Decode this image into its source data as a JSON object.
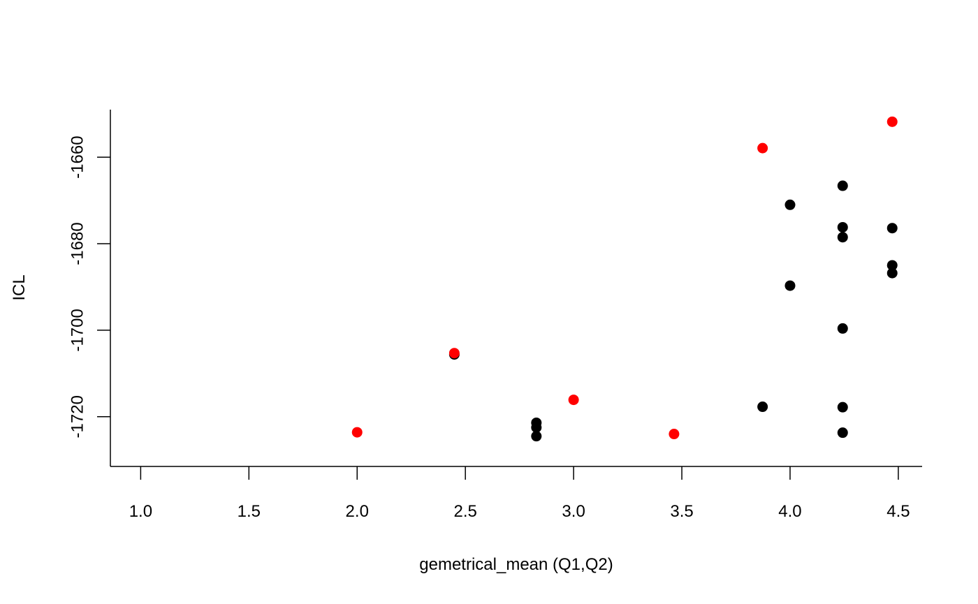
{
  "chart_data": {
    "type": "scatter",
    "title": "",
    "xlabel": "gemetrical_mean (Q1,Q2)",
    "ylabel": "ICL",
    "xlim": [
      0.86,
      4.61
    ],
    "ylim": [
      -1731.5,
      -1649
    ],
    "x_ticks": [
      1.0,
      1.5,
      2.0,
      2.5,
      3.0,
      3.5,
      4.0,
      4.5
    ],
    "x_tick_labels": [
      "1.0",
      "1.5",
      "2.0",
      "2.5",
      "3.0",
      "3.5",
      "4.0",
      "4.5"
    ],
    "y_ticks": [
      -1720,
      -1700,
      -1680,
      -1660
    ],
    "y_tick_labels": [
      "-1720",
      "-1700",
      "-1680",
      "-1660"
    ],
    "grid": false,
    "legend": "none",
    "series": [
      {
        "color": "#000000",
        "points": [
          {
            "x": 2.449,
            "y": -1705.6
          },
          {
            "x": 2.828,
            "y": -1721.4
          },
          {
            "x": 2.828,
            "y": -1722.5
          },
          {
            "x": 2.828,
            "y": -1724.5
          },
          {
            "x": 3.873,
            "y": -1717.7
          },
          {
            "x": 4.0,
            "y": -1671.0
          },
          {
            "x": 4.0,
            "y": -1689.7
          },
          {
            "x": 4.243,
            "y": -1666.6
          },
          {
            "x": 4.243,
            "y": -1676.2
          },
          {
            "x": 4.243,
            "y": -1678.5
          },
          {
            "x": 4.243,
            "y": -1699.6
          },
          {
            "x": 4.243,
            "y": -1717.8
          },
          {
            "x": 4.243,
            "y": -1723.7
          },
          {
            "x": 4.472,
            "y": -1676.4
          },
          {
            "x": 4.472,
            "y": -1685.0
          },
          {
            "x": 4.472,
            "y": -1686.8
          }
        ]
      },
      {
        "color": "#ff0000",
        "points": [
          {
            "x": 2.0,
            "y": -1723.6
          },
          {
            "x": 2.449,
            "y": -1705.3
          },
          {
            "x": 3.0,
            "y": -1716.1
          },
          {
            "x": 3.464,
            "y": -1724.0
          },
          {
            "x": 3.873,
            "y": -1657.9
          },
          {
            "x": 4.472,
            "y": -1651.8
          }
        ]
      }
    ]
  }
}
